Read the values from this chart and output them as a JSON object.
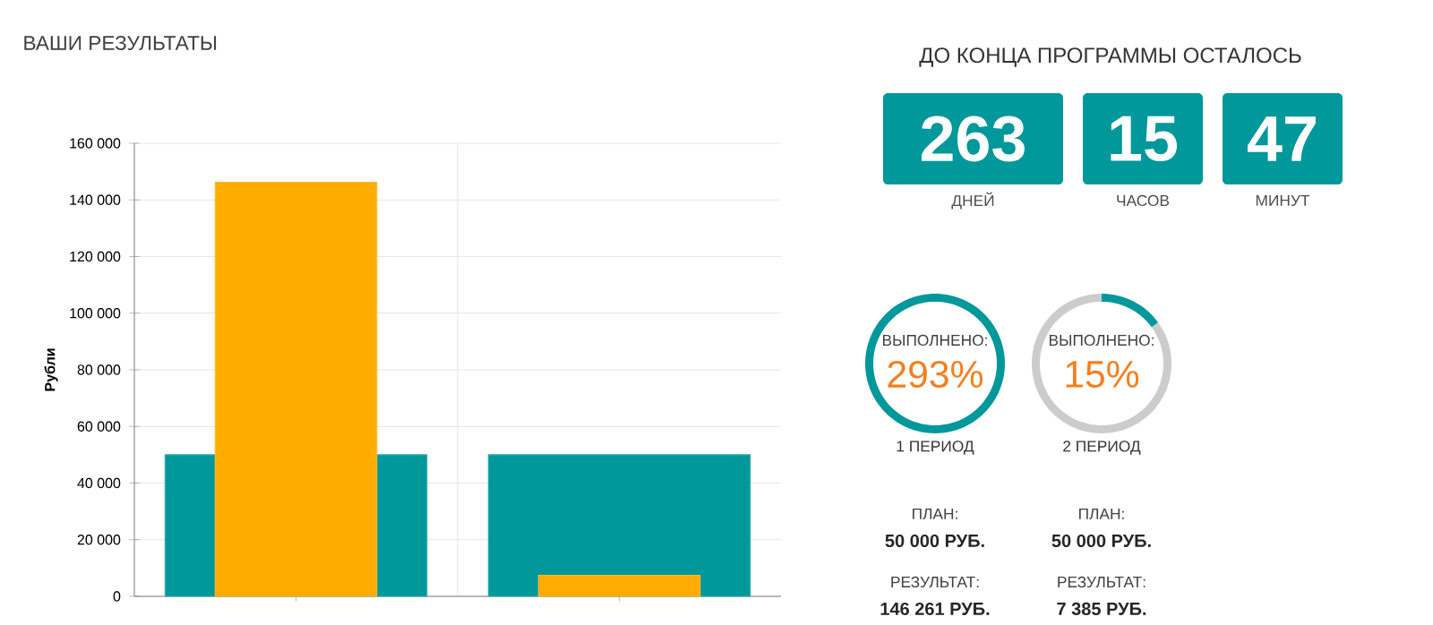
{
  "chart_data": [
    {
      "type": "bar",
      "title": "ВАШИ РЕЗУЛЬТАТЫ",
      "ylabel": "Рубли",
      "categories": [
        null,
        null
      ],
      "series": [
        {
          "color": "#00989a",
          "values": [
            50000,
            50000
          ]
        },
        {
          "color": "#ffab00",
          "values": [
            146261,
            7385
          ]
        }
      ],
      "ylim": [
        0,
        160000
      ],
      "yticks": [
        {
          "value": 0,
          "label": "0"
        },
        {
          "value": 20000,
          "label": "20 000"
        },
        {
          "value": 40000,
          "label": "40 000"
        },
        {
          "value": 60000,
          "label": "60 000"
        },
        {
          "value": 80000,
          "label": "80 000"
        },
        {
          "value": 100000,
          "label": "100 000"
        },
        {
          "value": 120000,
          "label": "120 000"
        },
        {
          "value": 140000,
          "label": "140 000"
        },
        {
          "value": 160000,
          "label": "160 000"
        }
      ],
      "grid": true
    },
    {
      "type": "other",
      "title": "ДО КОНЦА ПРОГРАММЫ ОСТАЛОСЬ",
      "annotations": [
        "263",
        "ДНЕЙ",
        "15",
        "ЧАСОВ",
        "47",
        "МИНУТ"
      ]
    },
    {
      "type": "pie",
      "categories": [
        null,
        null
      ],
      "values": [
        100,
        0
      ],
      "colors": [
        "#00989a",
        "#cccccc"
      ],
      "annotations": [
        "ВЫПОЛНЕНО:",
        "293%",
        "1 ПЕРИОД",
        "ПЛАН:",
        "50 000 РУБ.",
        "РЕЗУЛЬТАТ:",
        "146 261 РУБ."
      ]
    },
    {
      "type": "donut",
      "categories": [
        null,
        null
      ],
      "values": [
        15,
        85
      ],
      "colors": [
        "#00989a",
        "#cccccc"
      ],
      "annotations": [
        "ВЫПОЛНЕНО:",
        "15%",
        "2 ПЕРИОД",
        "ПЛАН:",
        "50 000 РУБ.",
        "РЕЗУЛЬТАТ:",
        "7 385 РУБ."
      ]
    }
  ]
}
